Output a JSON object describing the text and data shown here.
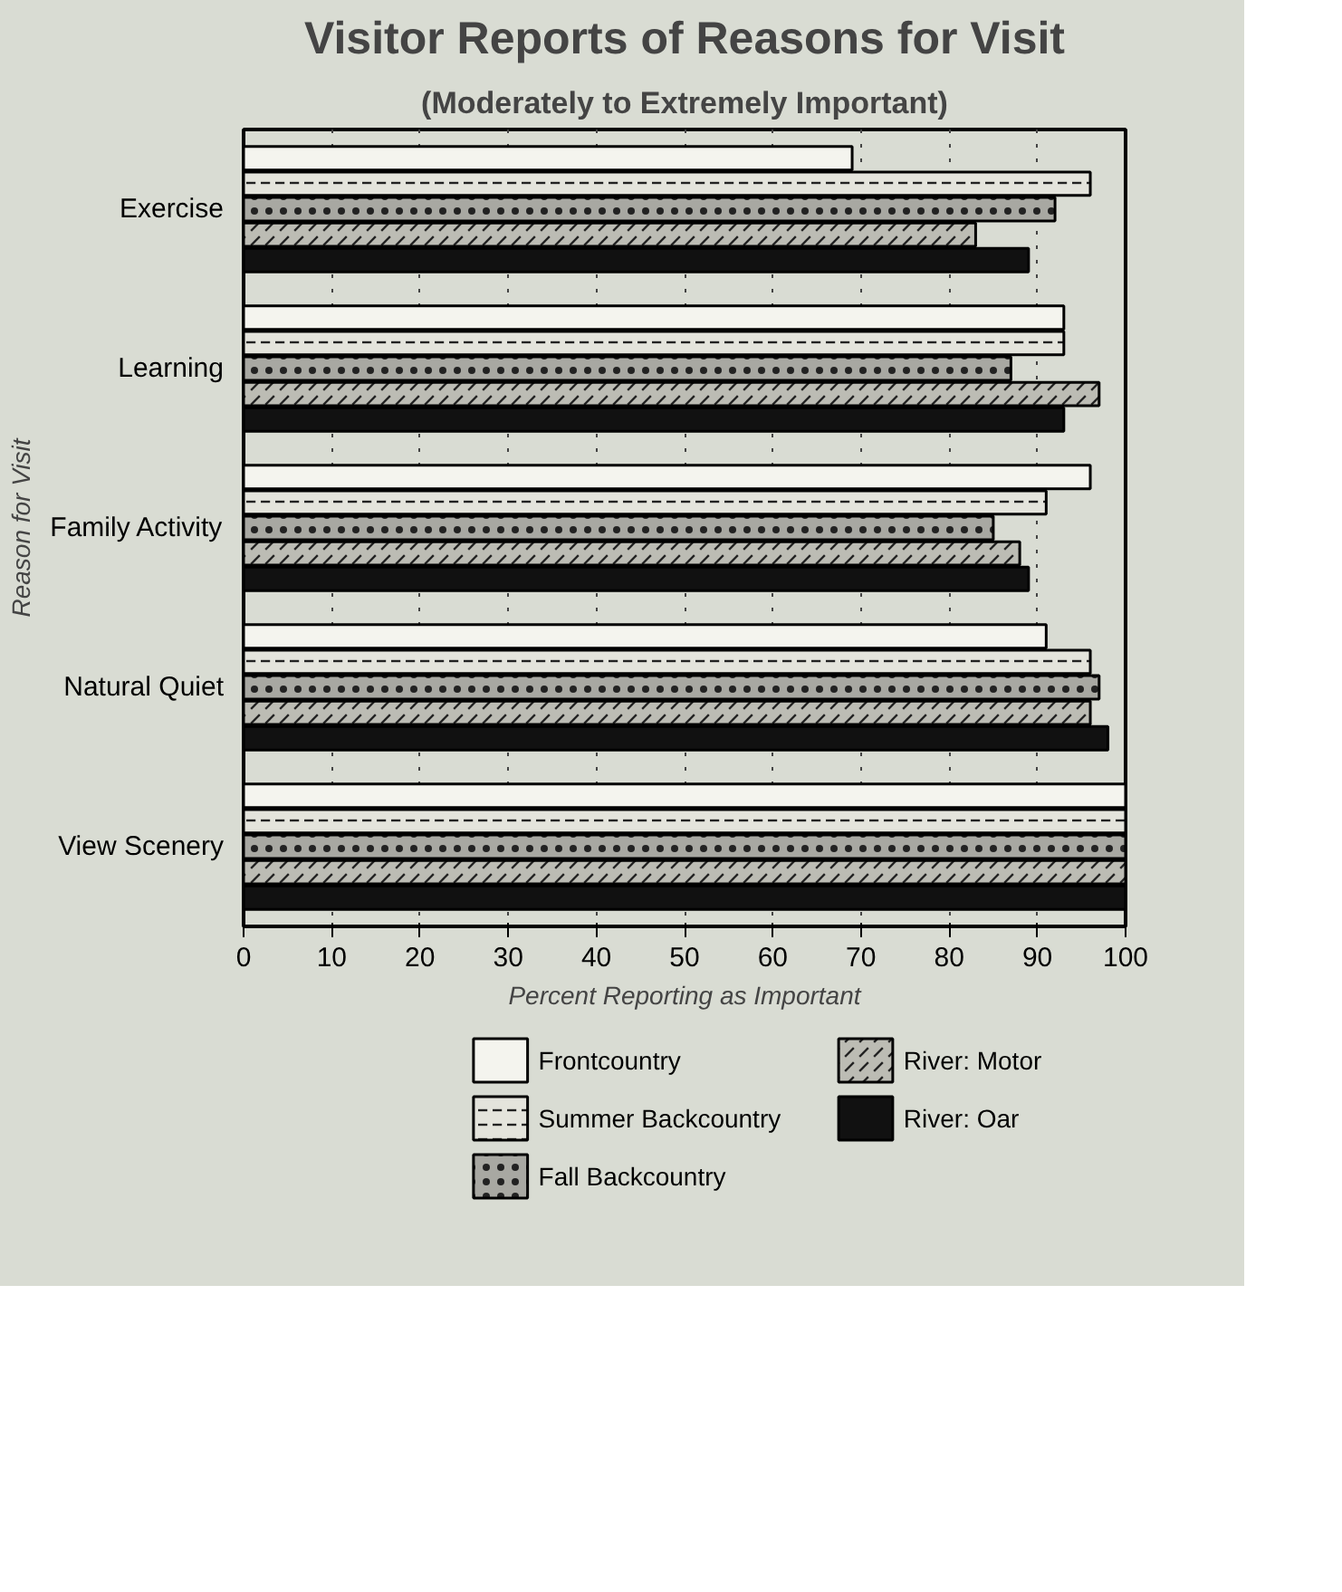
{
  "chart_data": {
    "type": "bar",
    "orientation": "horizontal",
    "title": "Visitor Reports of Reasons for Visit",
    "subtitle": "(Moderately to Extremely Important)",
    "xlabel": "Percent Reporting as Important",
    "ylabel": "Reason for Visit",
    "categories": [
      "Exercise",
      "Learning",
      "Family Activity",
      "Natural Quiet",
      "View Scenery"
    ],
    "series": [
      {
        "name": "Frontcountry",
        "color": "#f4f4ee",
        "values": [
          69,
          93,
          96,
          91,
          100
        ]
      },
      {
        "name": "Summer Backcountry",
        "color": "#e4e4dc",
        "values": [
          96,
          93,
          91,
          96,
          100
        ]
      },
      {
        "name": "Fall Backcountry",
        "color": "#a8a8a2",
        "values": [
          92,
          87,
          85,
          97,
          100
        ]
      },
      {
        "name": "River: Motor",
        "color": "#bcbcb4",
        "values": [
          83,
          97,
          88,
          96,
          100
        ]
      },
      {
        "name": "River: Oar",
        "color": "#111111",
        "values": [
          89,
          93,
          89,
          98,
          100
        ]
      }
    ],
    "xlim": [
      0,
      100
    ],
    "xticks": [
      0,
      10,
      20,
      30,
      40,
      50,
      60,
      70,
      80,
      90,
      100
    ],
    "grid": "x",
    "legend": "bottom"
  }
}
